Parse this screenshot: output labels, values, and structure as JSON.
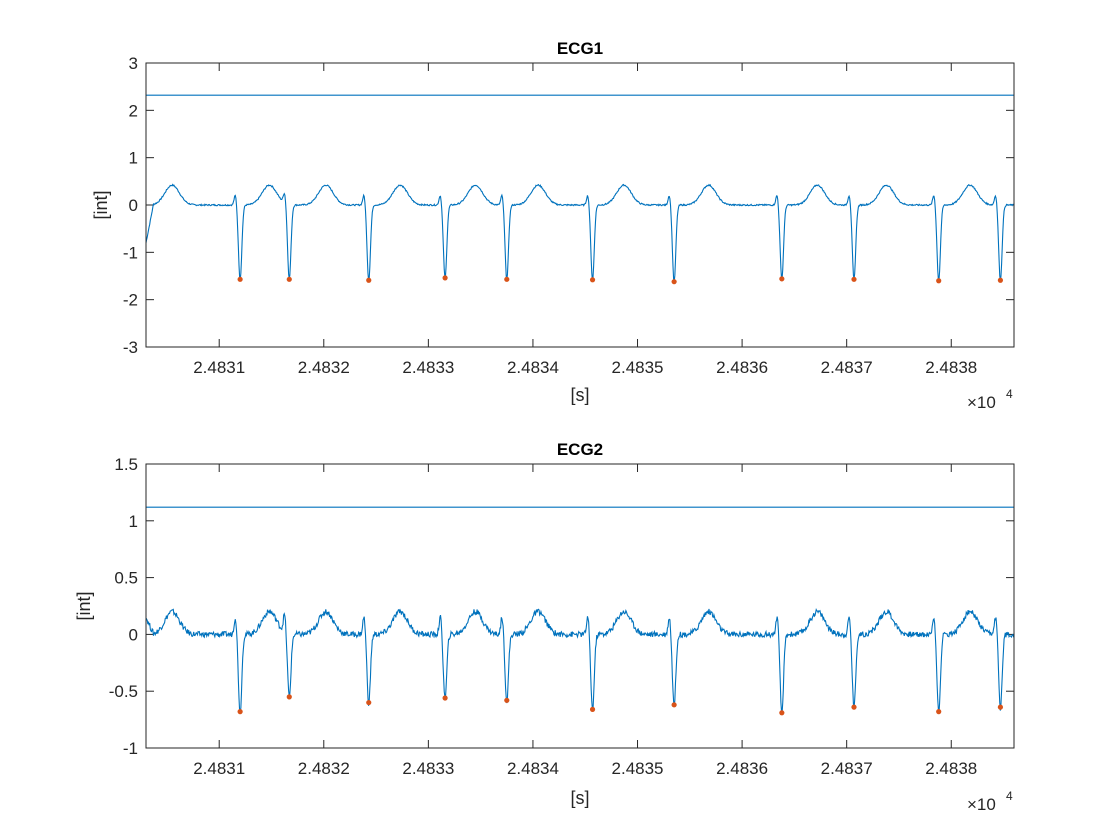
{
  "chart_data": [
    {
      "type": "line",
      "title": "ECG1",
      "xlabel": "[s]",
      "ylabel": "[int]",
      "x_exponent_label": "×10",
      "x_exponent_power": "4",
      "xlim": [
        24830.3,
        24838.6
      ],
      "ylim": [
        -3,
        3
      ],
      "x_ticks": [
        24831,
        24832,
        24833,
        24834,
        24835,
        24836,
        24837,
        24838
      ],
      "x_tick_labels": [
        "2.4831",
        "2.4832",
        "2.4833",
        "2.4834",
        "2.4835",
        "2.4836",
        "2.4837",
        "2.4838"
      ],
      "y_ticks": [
        -3,
        -2,
        -1,
        0,
        1,
        2,
        3
      ],
      "y_tick_labels": [
        "-3",
        "-2",
        "-1",
        "0",
        "1",
        "2",
        "3"
      ],
      "grid": false,
      "colors": {
        "signal": "#0072BD",
        "peaks": "#D95319"
      },
      "threshold": 2.32,
      "baseline_wave": {
        "t_amp": 0.42,
        "r_amp": 0.22,
        "s_depth": -1.6
      },
      "start_value": -0.8,
      "peaks": {
        "x": [
          24831.2,
          24831.67,
          24832.43,
          24833.16,
          24833.75,
          24834.57,
          24835.35,
          24836.38,
          24837.07,
          24837.88,
          24838.47
        ],
        "y": [
          -1.57,
          -1.57,
          -1.59,
          -1.54,
          -1.57,
          -1.58,
          -1.62,
          -1.56,
          -1.57,
          -1.6,
          -1.59
        ]
      },
      "t_wave_x": [
        24830.55,
        24831.48,
        24832.02,
        24832.73,
        24833.45,
        24834.05,
        24834.87,
        24835.68,
        24836.72,
        24837.38,
        24838.18
      ]
    },
    {
      "type": "line",
      "title": "ECG2",
      "xlabel": "[s]",
      "ylabel": "[int]",
      "x_exponent_label": "×10",
      "x_exponent_power": "4",
      "xlim": [
        24830.3,
        24838.6
      ],
      "ylim": [
        -1,
        1.5
      ],
      "x_ticks": [
        24831,
        24832,
        24833,
        24834,
        24835,
        24836,
        24837,
        24838
      ],
      "x_tick_labels": [
        "2.4831",
        "2.4832",
        "2.4833",
        "2.4834",
        "2.4835",
        "2.4836",
        "2.4837",
        "2.4838"
      ],
      "y_ticks": [
        -1,
        -0.5,
        0,
        0.5,
        1,
        1.5
      ],
      "y_tick_labels": [
        "-1",
        "-0.5",
        "0",
        "0.5",
        "1",
        "1.5"
      ],
      "grid": false,
      "colors": {
        "signal": "#0072BD",
        "peaks": "#D95319"
      },
      "threshold": 1.12,
      "baseline_wave": {
        "t_amp": 0.2,
        "r_amp": 0.16,
        "s_depth": -0.68
      },
      "start_value": 0.15,
      "peaks": {
        "x": [
          24831.2,
          24831.67,
          24832.43,
          24833.16,
          24833.75,
          24834.57,
          24835.35,
          24836.38,
          24837.07,
          24837.88,
          24838.47
        ],
        "y": [
          -0.68,
          -0.55,
          -0.6,
          -0.56,
          -0.58,
          -0.66,
          -0.62,
          -0.69,
          -0.64,
          -0.68,
          -0.64
        ]
      },
      "t_wave_x": [
        24830.55,
        24831.48,
        24832.02,
        24832.73,
        24833.45,
        24834.05,
        24834.87,
        24835.68,
        24836.72,
        24837.38,
        24838.18
      ]
    }
  ]
}
